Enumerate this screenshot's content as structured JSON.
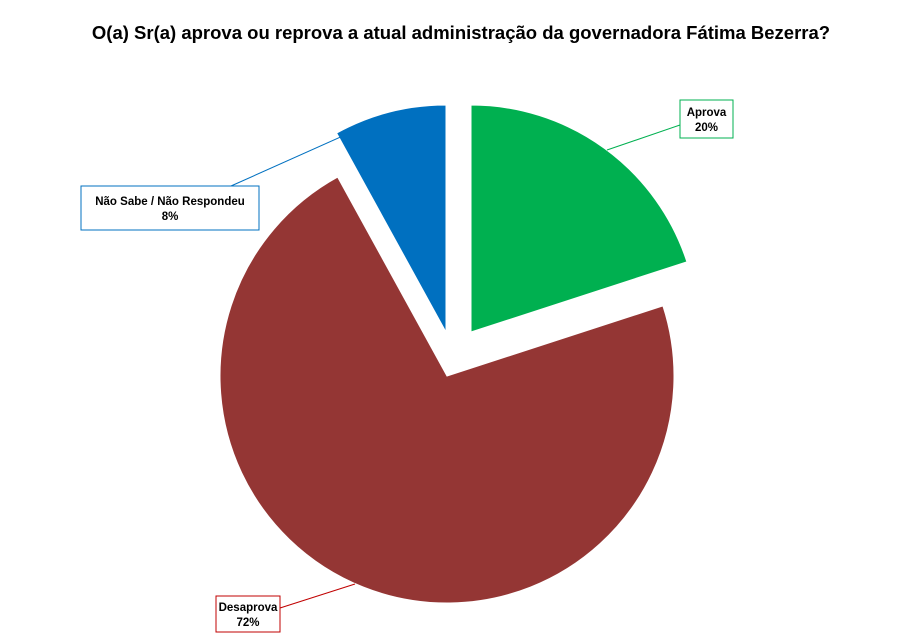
{
  "chart_data": {
    "type": "pie",
    "title": "O(a) Sr(a) aprova ou reprova a atual administração da governadora Fátima Bezerra?",
    "slices": [
      {
        "name": "Aprova",
        "value": 20,
        "value_label": "20%",
        "color": "#00B050",
        "exploded": true
      },
      {
        "name": "Desaprova",
        "value": 72,
        "value_label": "72%",
        "color": "#943634",
        "exploded": false
      },
      {
        "name": "Não Sabe / Não Respondeu",
        "value": 8,
        "value_label": "8%",
        "color": "#0070C0",
        "exploded": true
      }
    ],
    "legend": "none",
    "labels": "callouts"
  }
}
